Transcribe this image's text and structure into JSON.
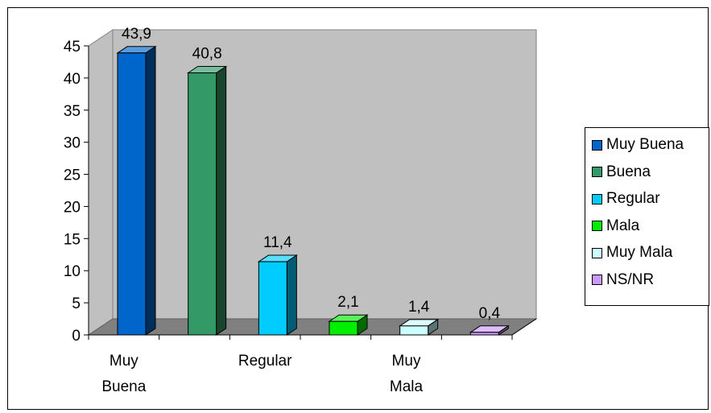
{
  "chart_data": {
    "type": "bar",
    "categories": [
      "Muy Buena",
      "Buena",
      "Regular",
      "Mala",
      "Muy Mala",
      "NS/NR"
    ],
    "values": [
      43.9,
      40.8,
      11.4,
      2.1,
      1.4,
      0.4
    ],
    "data_labels": [
      "43,9",
      "40,8",
      "11,4",
      "2,1",
      "1,4",
      "0,4"
    ],
    "x_tick_labels": [
      [
        "Muy",
        "Buena"
      ],
      [],
      [
        "Regular"
      ],
      [],
      [
        "Muy",
        "Mala"
      ],
      []
    ],
    "y_ticks": [
      "0",
      "5",
      "10",
      "15",
      "20",
      "25",
      "30",
      "35",
      "40",
      "45"
    ],
    "ylim": [
      0,
      45
    ],
    "colors": [
      "#0066CC",
      "#339966",
      "#00CCFF",
      "#00EE00",
      "#CCFFFF",
      "#CC99FF"
    ],
    "three_d": true,
    "legend_position": "right",
    "plot_background": "#C0C0C0",
    "floor_color": "#808080"
  }
}
